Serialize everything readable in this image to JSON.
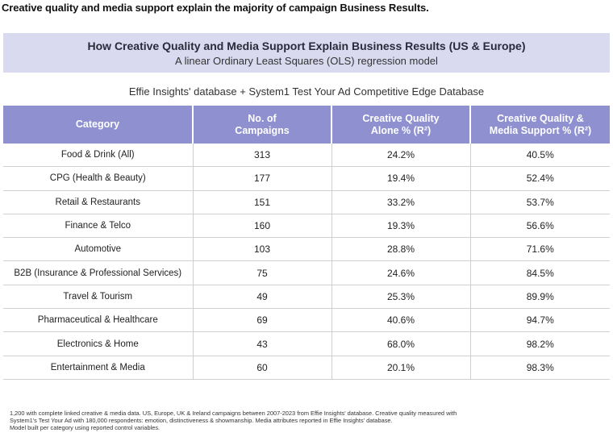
{
  "headline": "Creative quality and media support explain the majority of campaign Business Results.",
  "banner": {
    "title": "How Creative Quality and Media Support Explain Business Results (US & Europe)",
    "subtitle": "A linear Ordinary Least Squares (OLS) regression model"
  },
  "source": "Effie Insights' database + System1 Test Your Ad Competitive Edge Database",
  "table": {
    "headers": {
      "category": "Category",
      "campaigns_l1": "No. of",
      "campaigns_l2": "Campaigns",
      "creative_l1": "Creative Quality",
      "creative_l2": "Alone % (R²)",
      "combined_l1": "Creative Quality &",
      "combined_l2": "Media Support % (R²)"
    },
    "rows": [
      {
        "category": "Food & Drink (All)",
        "campaigns": "313",
        "creative": "24.2%",
        "combined": "40.5%"
      },
      {
        "category": "CPG (Health & Beauty)",
        "campaigns": "177",
        "creative": "19.4%",
        "combined": "52.4%"
      },
      {
        "category": "Retail & Restaurants",
        "campaigns": "151",
        "creative": "33.2%",
        "combined": "53.7%"
      },
      {
        "category": "Finance & Telco",
        "campaigns": "160",
        "creative": "19.3%",
        "combined": "56.6%"
      },
      {
        "category": "Automotive",
        "campaigns": "103",
        "creative": "28.8%",
        "combined": "71.6%"
      },
      {
        "category": "B2B (Insurance & Professional Services)",
        "campaigns": "75",
        "creative": "24.6%",
        "combined": "84.5%"
      },
      {
        "category": "Travel & Tourism",
        "campaigns": "49",
        "creative": "25.3%",
        "combined": "89.9%"
      },
      {
        "category": "Pharmaceutical & Healthcare",
        "campaigns": "69",
        "creative": "40.6%",
        "combined": "94.7%"
      },
      {
        "category": "Electronics & Home",
        "campaigns": "43",
        "creative": "68.0%",
        "combined": "98.2%"
      },
      {
        "category": "Entertainment & Media",
        "campaigns": "60",
        "creative": "20.1%",
        "combined": "98.3%"
      }
    ]
  },
  "footnote": {
    "line1": "1,200 with complete linked creative & media data. US, Europe, UK & Ireland campaigns between 2007-2023 from Effie Insights' database. Creative quality measured with",
    "line2": "System1's Test Your Ad with 180,000 respondents: emotion, distinctiveness & showmanship. Media attributes reported in Effie Insights' database.",
    "line3": "Model built per category using reported control variables."
  }
}
